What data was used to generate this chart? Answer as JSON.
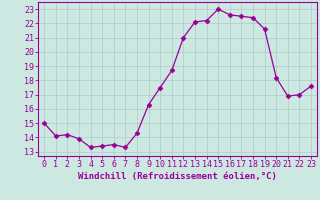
{
  "x": [
    0,
    1,
    2,
    3,
    4,
    5,
    6,
    7,
    8,
    9,
    10,
    11,
    12,
    13,
    14,
    15,
    16,
    17,
    18,
    19,
    20,
    21,
    22,
    23
  ],
  "y": [
    15.0,
    14.1,
    14.2,
    13.9,
    13.3,
    13.4,
    13.5,
    13.3,
    14.3,
    16.3,
    17.5,
    18.7,
    21.0,
    22.1,
    22.2,
    23.0,
    22.6,
    22.5,
    22.4,
    21.6,
    18.2,
    16.9,
    17.0,
    17.6
  ],
  "line_color": "#990099",
  "marker": "D",
  "marker_size": 2.5,
  "bg_color": "#cce8e0",
  "grid_color": "#aacccc",
  "axis_color": "#990099",
  "xlabel": "Windchill (Refroidissement éolien,°C)",
  "xlabel_fontsize": 6.5,
  "tick_fontsize": 6.0,
  "xlim": [
    -0.5,
    23.5
  ],
  "ylim": [
    12.7,
    23.5
  ],
  "yticks": [
    13,
    14,
    15,
    16,
    17,
    18,
    19,
    20,
    21,
    22,
    23
  ],
  "xticks": [
    0,
    1,
    2,
    3,
    4,
    5,
    6,
    7,
    8,
    9,
    10,
    11,
    12,
    13,
    14,
    15,
    16,
    17,
    18,
    19,
    20,
    21,
    22,
    23
  ]
}
